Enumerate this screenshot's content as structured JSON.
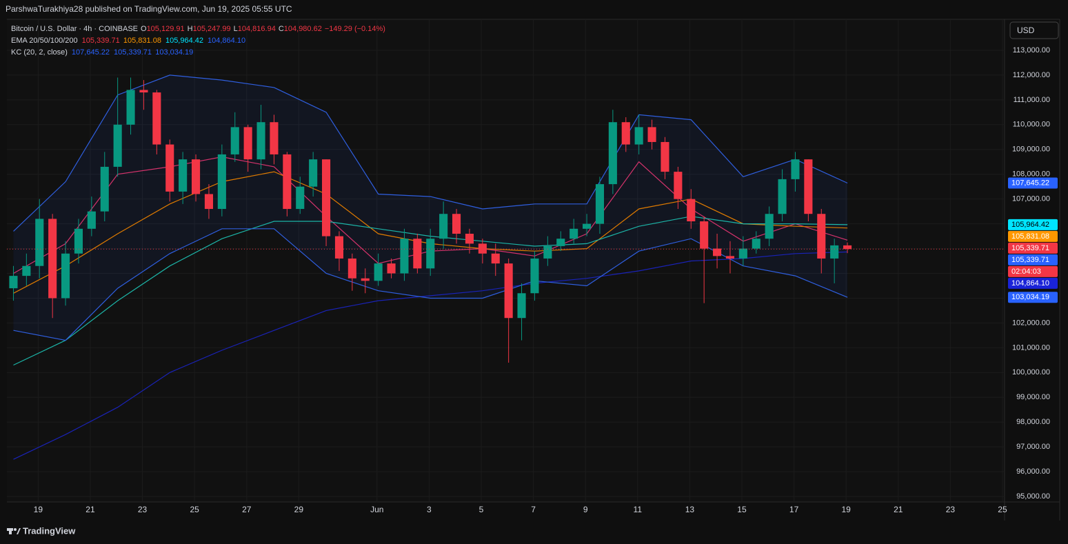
{
  "chart_data": {
    "type": "candlestick",
    "attribution": "ParshwaTurakhiya28 published on TradingView.com, Jun 19, 2025 05:55 UTC",
    "symbol": "Bitcoin / U.S. Dollar · 4h · COINBASE",
    "ohlc_legend": [
      {
        "key": "O",
        "label": "105,129.91"
      },
      {
        "key": "H",
        "label": "105,247.99"
      },
      {
        "key": "L",
        "label": "104,816.94"
      },
      {
        "key": "C",
        "label": "104,980.62"
      }
    ],
    "change": "−149.29 (−0.14%)",
    "indicators": [
      {
        "name": "EMA 20/50/100/200",
        "labels": [
          "105,339.71",
          "105,831.08",
          "105,964.42",
          "104,864.10"
        ],
        "colors": [
          "#f23645",
          "#ff9800",
          "#00e5ff",
          "#2962ff"
        ]
      },
      {
        "name": "KC (20, 2, close)",
        "labels": [
          "107,645.22",
          "105,339.71",
          "103,034.19"
        ],
        "colors": [
          "#2962ff",
          "#2962ff",
          "#2962ff"
        ]
      }
    ],
    "currency": "USD",
    "brand": "TradingView",
    "up_color": "#089981",
    "down_color": "#f23645",
    "open": [
      103400,
      103900,
      104300,
      106200,
      103000,
      104800,
      105800,
      106500,
      108300,
      110000,
      111400,
      111300,
      109200,
      107300,
      108600,
      107200,
      106600,
      108800,
      109900,
      108600,
      110100,
      108800,
      106600,
      107500,
      108600,
      105500,
      104600,
      103800,
      103700,
      104400,
      104000,
      105400,
      104200,
      105400,
      106400,
      105600,
      105200,
      104800,
      104400,
      102200,
      103200,
      104600,
      105100,
      105400,
      105800,
      106000,
      107600,
      110100,
      109200,
      109900,
      109300,
      108100,
      107000,
      106100,
      105000,
      104700,
      104600,
      105000,
      105400,
      106400,
      107800,
      108600,
      106400,
      104600,
      105129.91
    ],
    "high": [
      104300,
      104800,
      107000,
      106400,
      105300,
      106200,
      107100,
      108900,
      111900,
      111900,
      111800,
      111400,
      109400,
      108900,
      108800,
      107600,
      109200,
      110500,
      110000,
      110800,
      110400,
      108900,
      107900,
      108900,
      108600,
      105700,
      104800,
      104200,
      104800,
      104600,
      105800,
      105600,
      105800,
      106900,
      106600,
      105800,
      105400,
      105200,
      104600,
      103600,
      104900,
      105500,
      105700,
      106200,
      106400,
      107900,
      110600,
      110300,
      110400,
      110200,
      109500,
      108300,
      107400,
      106300,
      105600,
      105300,
      105500,
      105700,
      106700,
      108200,
      108900,
      108600,
      106600,
      105400,
      105247.99
    ],
    "low": [
      102900,
      103500,
      103800,
      102200,
      102700,
      104400,
      105500,
      106100,
      107900,
      109600,
      110600,
      108800,
      106900,
      106800,
      106900,
      106200,
      106300,
      108500,
      108100,
      108200,
      108400,
      106300,
      106400,
      107100,
      105100,
      104100,
      103300,
      103200,
      103500,
      103800,
      103700,
      104000,
      103900,
      105000,
      105200,
      104800,
      104400,
      103900,
      100400,
      101300,
      102900,
      104300,
      104900,
      105200,
      105500,
      105600,
      107200,
      108900,
      108800,
      109000,
      107800,
      106600,
      105800,
      102800,
      104200,
      104000,
      104300,
      104800,
      105100,
      106100,
      107300,
      106100,
      104000,
      103600,
      104816.94
    ],
    "close": [
      103900,
      104300,
      106200,
      103000,
      104800,
      105800,
      106500,
      108300,
      110000,
      111400,
      111300,
      109200,
      107300,
      108600,
      107200,
      106600,
      108800,
      109900,
      108600,
      110100,
      108800,
      106600,
      107500,
      108600,
      105500,
      104600,
      103800,
      103700,
      104400,
      104000,
      105400,
      104200,
      105400,
      106400,
      105600,
      105200,
      104800,
      104400,
      102200,
      103200,
      104600,
      105100,
      105400,
      105800,
      106000,
      107600,
      110100,
      109200,
      109900,
      109300,
      108100,
      107000,
      106100,
      105000,
      104700,
      104600,
      105000,
      105400,
      106400,
      107800,
      108600,
      106400,
      104600,
      105129.91,
      104980.62
    ],
    "line_x": [
      0,
      4,
      8,
      12,
      16,
      20,
      24,
      28,
      32,
      36,
      40,
      44,
      48,
      52,
      56,
      60,
      64
    ],
    "series": [
      {
        "name": "EMA 20",
        "color": "#d6336c",
        "values": [
          104000,
          105200,
          108000,
          108300,
          108700,
          108300,
          106300,
          104400,
          104900,
          105000,
          104700,
          105600,
          108500,
          106600,
          105300,
          106000,
          105339.71
        ]
      },
      {
        "name": "EMA 50",
        "color": "#e07b00",
        "values": [
          103200,
          104300,
          105600,
          106800,
          107700,
          108100,
          107200,
          105600,
          105200,
          105000,
          104900,
          105000,
          106600,
          107000,
          106000,
          105900,
          105831.08
        ]
      },
      {
        "name": "EMA 100",
        "color": "#1cb5a8",
        "values": [
          100300,
          101300,
          102900,
          104300,
          105400,
          106100,
          106100,
          105800,
          105500,
          105300,
          105100,
          105200,
          105900,
          106300,
          106000,
          106000,
          105964.42
        ]
      },
      {
        "name": "EMA 200",
        "color": "#1a23b8",
        "values": [
          96500,
          97500,
          98600,
          100000,
          100900,
          101700,
          102500,
          102900,
          103100,
          103300,
          103600,
          103800,
          104100,
          104500,
          104600,
          104800,
          104864.1
        ]
      },
      {
        "name": "KC upper",
        "color": "#2f5fe0",
        "values": [
          105700,
          107700,
          111200,
          112000,
          111800,
          111500,
          110500,
          107200,
          107100,
          106600,
          106800,
          106800,
          110400,
          110200,
          107900,
          108600,
          107645.22
        ]
      },
      {
        "name": "KC lower",
        "color": "#2f5fe0",
        "values": [
          101700,
          101300,
          103400,
          104800,
          105800,
          105800,
          104000,
          103300,
          103000,
          103000,
          103700,
          103500,
          104900,
          105400,
          104300,
          103900,
          103034.19
        ]
      }
    ],
    "price_tags": [
      {
        "value": 107645.22,
        "label": "107,645.22",
        "color": "#2962ff"
      },
      {
        "value": 105964.42,
        "label": "105,964.42",
        "color": "#00e5ff"
      },
      {
        "value": 105831.08,
        "label": "105,831.08",
        "color": "#ff9800"
      },
      {
        "value": 105339.71,
        "label": "105,339.71",
        "color": "#f23645"
      },
      {
        "value": 105339.71,
        "label": "105,339.71",
        "color": "#2962ff"
      },
      {
        "value": 104980.62,
        "label": "02:04:03",
        "color": "#f23645"
      },
      {
        "value": 104864.1,
        "label": "104,864.10",
        "color": "#1a23d8"
      },
      {
        "value": 103034.19,
        "label": "103,034.19",
        "color": "#2962ff"
      }
    ],
    "xlim": [
      -0.5,
      76.06
    ],
    "xticks": [
      {
        "value": 1.9,
        "label": "19"
      },
      {
        "value": 5.9,
        "label": "21"
      },
      {
        "value": 9.9,
        "label": "23"
      },
      {
        "value": 13.9,
        "label": "25"
      },
      {
        "value": 17.9,
        "label": "27"
      },
      {
        "value": 21.9,
        "label": "29"
      },
      {
        "value": 27.9,
        "label": "Jun"
      },
      {
        "value": 31.9,
        "label": "3"
      },
      {
        "value": 35.9,
        "label": "5"
      },
      {
        "value": 39.9,
        "label": "7"
      },
      {
        "value": 43.9,
        "label": "9"
      },
      {
        "value": 47.9,
        "label": "11"
      },
      {
        "value": 51.9,
        "label": "13"
      },
      {
        "value": 55.9,
        "label": "15"
      },
      {
        "value": 59.9,
        "label": "17"
      },
      {
        "value": 63.9,
        "label": "19"
      },
      {
        "value": 67.9,
        "label": "21"
      },
      {
        "value": 71.9,
        "label": "23"
      },
      {
        "value": 75.9,
        "label": "25"
      }
    ],
    "ylim": [
      94780,
      114250
    ],
    "yticks": [
      {
        "value": 95000,
        "label": "95,000.00"
      },
      {
        "value": 96000,
        "label": "96,000.00"
      },
      {
        "value": 97000,
        "label": "97,000.00"
      },
      {
        "value": 98000,
        "label": "98,000.00"
      },
      {
        "value": 99000,
        "label": "99,000.00"
      },
      {
        "value": 100000,
        "label": "100,000.00"
      },
      {
        "value": 101000,
        "label": "101,000.00"
      },
      {
        "value": 102000,
        "label": "102,000.00"
      },
      {
        "value": 103000,
        "label": "103,000.00"
      },
      {
        "value": 104000,
        "label": "104,000.00"
      },
      {
        "value": 105000,
        "label": "105,000.00"
      },
      {
        "value": 106000,
        "label": "106,000.00"
      },
      {
        "value": 107000,
        "label": "107,000.00"
      },
      {
        "value": 108000,
        "label": "108,000.00"
      },
      {
        "value": 109000,
        "label": "109,000.00"
      },
      {
        "value": 110000,
        "label": "110,000.00"
      },
      {
        "value": 111000,
        "label": "111,000.00"
      },
      {
        "value": 112000,
        "label": "112,000.00"
      },
      {
        "value": 113000,
        "label": "113,000.00"
      }
    ],
    "grid": true
  }
}
